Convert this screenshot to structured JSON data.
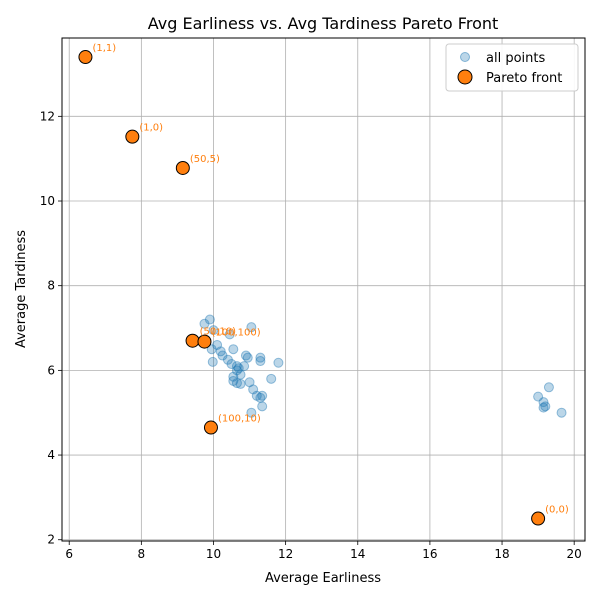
{
  "chart_data": {
    "type": "scatter",
    "title": "Avg Earliness vs. Avg Tardiness Pareto Front",
    "xlabel": "Average Earliness",
    "ylabel": "Average Tardiness",
    "xlim": [
      5.8,
      20.3
    ],
    "ylim": [
      1.97,
      13.85
    ],
    "xticks": [
      6,
      8,
      10,
      12,
      14,
      16,
      18,
      20
    ],
    "yticks": [
      2,
      4,
      6,
      8,
      10,
      12
    ],
    "grid": true,
    "legend_position": "upper right",
    "series": [
      {
        "name": "all points",
        "color": "#1f77b4",
        "points": [
          [
            9.75,
            7.1
          ],
          [
            9.9,
            7.2
          ],
          [
            10.0,
            6.95
          ],
          [
            10.45,
            6.85
          ],
          [
            11.05,
            7.02
          ],
          [
            10.1,
            6.6
          ],
          [
            10.2,
            6.45
          ],
          [
            10.25,
            6.35
          ],
          [
            10.55,
            6.5
          ],
          [
            9.95,
            6.5
          ],
          [
            9.98,
            6.2
          ],
          [
            10.4,
            6.25
          ],
          [
            10.5,
            6.15
          ],
          [
            10.65,
            6.1
          ],
          [
            10.7,
            6.05
          ],
          [
            10.85,
            6.1
          ],
          [
            10.9,
            6.35
          ],
          [
            10.95,
            6.3
          ],
          [
            11.3,
            6.3
          ],
          [
            11.3,
            6.22
          ],
          [
            11.8,
            6.18
          ],
          [
            10.65,
            6.0
          ],
          [
            10.75,
            5.9
          ],
          [
            10.55,
            5.85
          ],
          [
            10.55,
            5.75
          ],
          [
            10.65,
            5.7
          ],
          [
            10.75,
            5.68
          ],
          [
            11.0,
            5.72
          ],
          [
            11.6,
            5.8
          ],
          [
            11.1,
            5.55
          ],
          [
            11.2,
            5.4
          ],
          [
            11.3,
            5.35
          ],
          [
            11.35,
            5.4
          ],
          [
            11.35,
            5.15
          ],
          [
            11.05,
            5.0
          ],
          [
            19.0,
            5.38
          ],
          [
            19.15,
            5.25
          ],
          [
            19.2,
            5.15
          ],
          [
            19.15,
            5.12
          ],
          [
            19.3,
            5.6
          ],
          [
            19.65,
            5.0
          ]
        ]
      },
      {
        "name": "Pareto front",
        "color": "#ff7f0e",
        "points": [
          {
            "x": 6.45,
            "y": 13.4,
            "label": "(1,1)"
          },
          {
            "x": 7.75,
            "y": 11.52,
            "label": "(1,0)"
          },
          {
            "x": 9.15,
            "y": 10.78,
            "label": "(50,5)"
          },
          {
            "x": 9.42,
            "y": 6.7,
            "label": "(50,10)"
          },
          {
            "x": 9.75,
            "y": 6.68,
            "label": "(100,100)"
          },
          {
            "x": 9.93,
            "y": 4.65,
            "label": "(100,10)"
          },
          {
            "x": 19.0,
            "y": 2.5,
            "label": "(0,0)"
          }
        ]
      }
    ]
  }
}
